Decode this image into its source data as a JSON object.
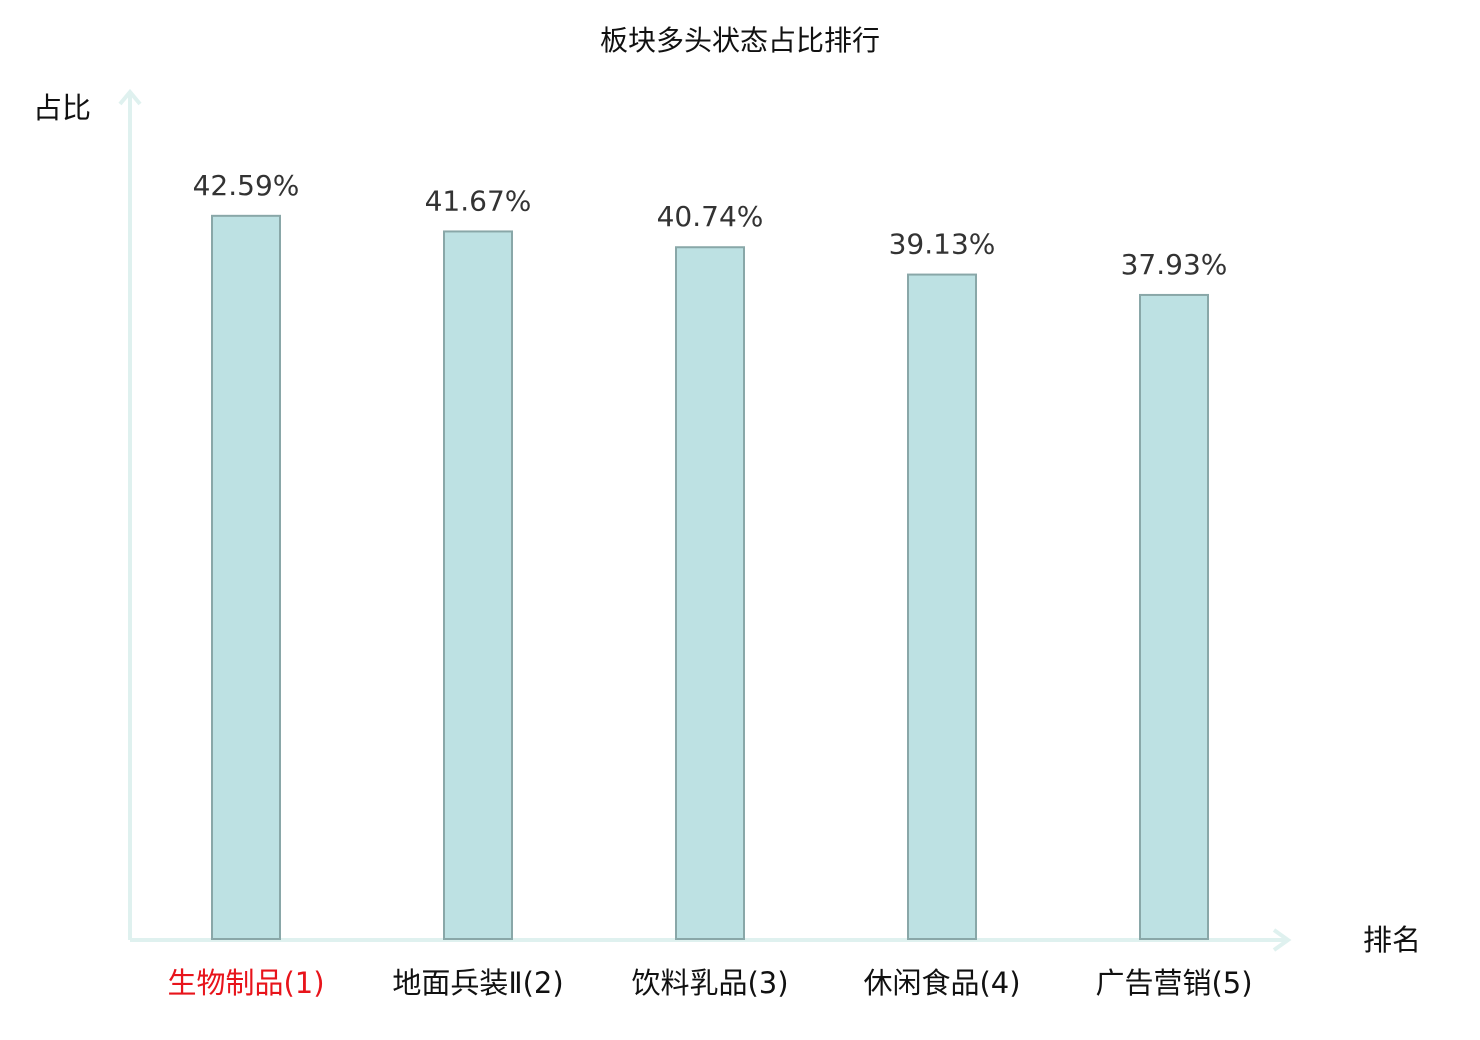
{
  "chart_data": {
    "type": "bar",
    "title": "板块多头状态占比排行",
    "y_label": "占比",
    "x_label": "排名",
    "categories": [
      "生物制品(1)",
      "地面兵装Ⅱ(2)",
      "饮料乳品(3)",
      "休闲食品(4)",
      "广告营销(5)"
    ],
    "category_colors": [
      "#e8141b",
      "#111111",
      "#111111",
      "#111111",
      "#111111"
    ],
    "values": [
      42.59,
      41.67,
      40.74,
      39.13,
      37.93
    ],
    "value_labels": [
      "42.59%",
      "41.67%",
      "40.74%",
      "39.13%",
      "37.93%"
    ],
    "color": "#bde1e3",
    "ylim": [
      0,
      50
    ]
  }
}
